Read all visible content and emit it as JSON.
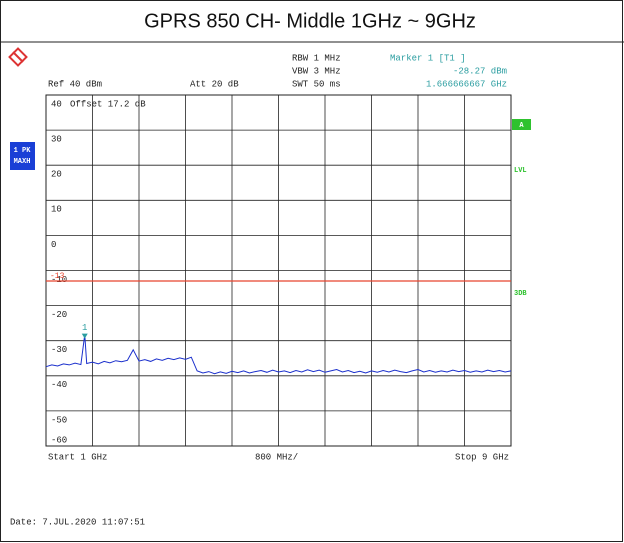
{
  "chart_data": {
    "type": "line",
    "title": "GPRS 850 CH- Middle 1GHz ~ 9GHz",
    "settings": {
      "rbw": "RBW 1 MHz",
      "vbw": "VBW 3 MHz",
      "swt": "SWT 50 ms",
      "ref": "Ref 40 dBm",
      "att": "Att 20 dB",
      "offset": "Offset 17.2 dB"
    },
    "marker": {
      "name": "Marker 1 [T1 ]",
      "id": "1",
      "x": 1.666666667,
      "value": -28.27,
      "value_label": "-28.27 dBm",
      "x_label": "1.666666667 GHz"
    },
    "trace_label": [
      "1 PK",
      "MAXH"
    ],
    "side_labels": {
      "a": "A",
      "lvl": "LVL",
      "db": "3DB"
    },
    "start_label": "Start 1 GHz",
    "span_label": "800 MHz/",
    "stop_label": "Stop 9 GHz",
    "date": "Date: 7.JUL.2020 11:07:51",
    "xlim": [
      1,
      9
    ],
    "ylim": [
      -60,
      40
    ],
    "xticks": [
      1,
      1.8,
      2.6,
      3.4,
      4.2,
      5,
      5.8,
      6.6,
      7.4,
      8.2,
      9
    ],
    "yticks": [
      40,
      30,
      20,
      10,
      0,
      -10,
      -20,
      -30,
      -40,
      -50,
      -60
    ],
    "grid": true,
    "limit_line": {
      "value": -13,
      "color": "#e8432d"
    },
    "x": [
      1.0,
      1.1,
      1.2,
      1.3,
      1.4,
      1.5,
      1.6,
      1.6667,
      1.7,
      1.8,
      1.9,
      2.0,
      2.1,
      2.2,
      2.3,
      2.4,
      2.5,
      2.6,
      2.7,
      2.8,
      2.9,
      3.0,
      3.1,
      3.2,
      3.3,
      3.4,
      3.5,
      3.6,
      3.7,
      3.8,
      3.9,
      4.0,
      4.1,
      4.2,
      4.3,
      4.4,
      4.5,
      4.6,
      4.7,
      4.8,
      4.9,
      5.0,
      5.1,
      5.2,
      5.3,
      5.4,
      5.5,
      5.6,
      5.7,
      5.8,
      5.9,
      6.0,
      6.1,
      6.2,
      6.3,
      6.4,
      6.5,
      6.6,
      6.7,
      6.8,
      6.9,
      7.0,
      7.1,
      7.2,
      7.3,
      7.4,
      7.5,
      7.6,
      7.7,
      7.8,
      7.9,
      8.0,
      8.1,
      8.2,
      8.3,
      8.4,
      8.5,
      8.6,
      8.7,
      8.8,
      8.9,
      9.0
    ],
    "series": [
      {
        "color": "#1a2fcc",
        "values": [
          -37.4,
          -36.9,
          -37.2,
          -36.6,
          -36.9,
          -36.4,
          -36.8,
          -28.27,
          -36.5,
          -36.1,
          -36.6,
          -35.9,
          -36.3,
          -35.7,
          -36.0,
          -35.6,
          -32.6,
          -35.8,
          -35.4,
          -35.9,
          -35.2,
          -35.6,
          -35.0,
          -35.4,
          -34.9,
          -35.3,
          -34.7,
          -38.6,
          -39.2,
          -38.8,
          -39.4,
          -38.9,
          -39.3,
          -38.7,
          -39.1,
          -38.6,
          -39.2,
          -38.8,
          -38.5,
          -39.0,
          -38.4,
          -38.9,
          -38.6,
          -39.1,
          -38.5,
          -38.9,
          -38.3,
          -38.8,
          -38.4,
          -39.0,
          -38.6,
          -38.2,
          -38.9,
          -38.5,
          -39.1,
          -38.7,
          -39.2,
          -38.6,
          -39.0,
          -38.5,
          -38.9,
          -38.4,
          -38.8,
          -39.1,
          -38.6,
          -38.2,
          -38.9,
          -38.5,
          -39.0,
          -38.6,
          -38.9,
          -38.4,
          -38.8,
          -38.5,
          -39.0,
          -38.6,
          -38.9,
          -38.4,
          -38.8,
          -38.5,
          -38.9,
          -38.6
        ]
      }
    ]
  }
}
